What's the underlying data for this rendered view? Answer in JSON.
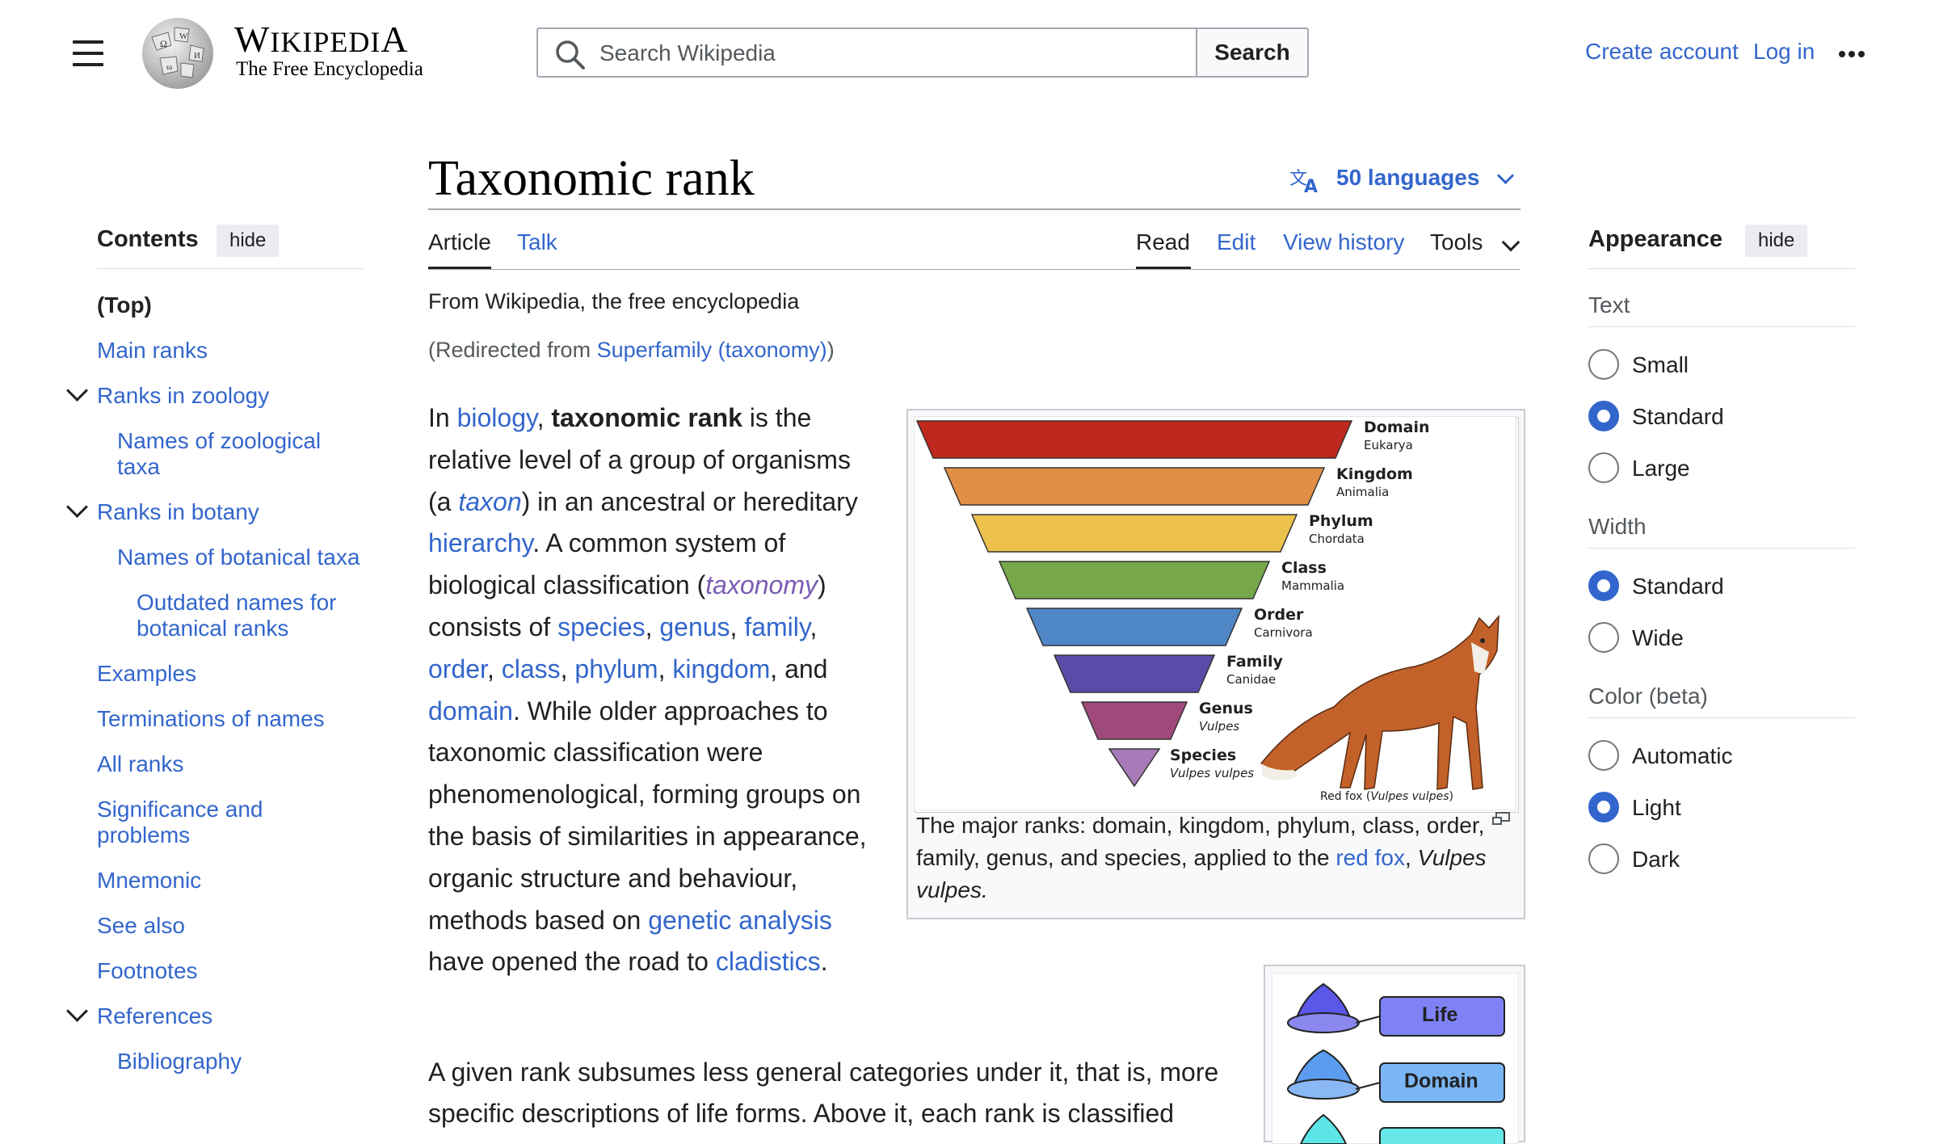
{
  "header": {
    "wordmark": "Wikipedia",
    "tagline": "The Free Encyclopedia",
    "search_placeholder": "Search Wikipedia",
    "search_button": "Search",
    "create_account": "Create account",
    "login": "Log in"
  },
  "toc": {
    "title": "Contents",
    "hide": "hide",
    "items": [
      {
        "label": "(Top)"
      },
      {
        "label": "Main ranks"
      },
      {
        "label": "Ranks in zoology"
      },
      {
        "label": "Names of zoological taxa"
      },
      {
        "label": "Ranks in botany"
      },
      {
        "label": "Names of botanical taxa"
      },
      {
        "label": "Outdated names for botanical ranks"
      },
      {
        "label": "Examples"
      },
      {
        "label": "Terminations of names"
      },
      {
        "label": "All ranks"
      },
      {
        "label": "Significance and problems"
      },
      {
        "label": "Mnemonic"
      },
      {
        "label": "See also"
      },
      {
        "label": "Footnotes"
      },
      {
        "label": "References"
      },
      {
        "label": "Bibliography"
      }
    ]
  },
  "article": {
    "title": "Taxonomic rank",
    "languages": "50 languages",
    "tabs": {
      "article": "Article",
      "talk": "Talk",
      "read": "Read",
      "edit": "Edit",
      "history": "View history",
      "tools": "Tools"
    },
    "from": "From Wikipedia, the free encyclopedia",
    "redirect_prefix": "(Redirected from ",
    "redirect_link": "Superfamily (taxonomy)",
    "redirect_suffix": ")",
    "p1": {
      "t1": "In ",
      "biology": "biology",
      "t2": ", ",
      "bold": "taxonomic rank",
      "t3": " is the relative level of a group of organisms (a ",
      "taxon": "taxon",
      "t4": ") in an ancestral or hereditary ",
      "hierarchy": "hierarchy",
      "t5": ". A common system of biological classification (",
      "taxonomy": "taxonomy",
      "t6": ") consists of ",
      "species": "species",
      "genus": "genus",
      "family": "family",
      "order": "order",
      "class": "class",
      "phylum": "phylum",
      "kingdom": "kingdom",
      "and": ", and ",
      "domain": "domain",
      "t7": ". While older approaches to taxonomic classification were phenomenological, forming groups on the basis of similarities in appearance, organic structure and behaviour, methods based on ",
      "genetic": "genetic analysis",
      "t8": " have opened the road to ",
      "cladistics": "cladistics",
      "t9": "."
    },
    "p2": "A given rank subsumes less general categories under it, that is, more specific descriptions of life forms. Above it, each rank is classified"
  },
  "figure1": {
    "ranks": [
      {
        "rank": "Domain",
        "example": "Eukarya",
        "color": "#c0271d"
      },
      {
        "rank": "Kingdom",
        "example": "Animalia",
        "color": "#e08f45"
      },
      {
        "rank": "Phylum",
        "example": "Chordata",
        "color": "#ecc24d"
      },
      {
        "rank": "Class",
        "example": "Mammalia",
        "color": "#76a84a"
      },
      {
        "rank": "Order",
        "example": "Carnivora",
        "color": "#4f86c6"
      },
      {
        "rank": "Family",
        "example": "Canidae",
        "color": "#5b4aa8"
      },
      {
        "rank": "Genus",
        "example": "Vulpes",
        "color": "#a04a7c"
      },
      {
        "rank": "Species",
        "example": "Vulpes vulpes",
        "color": "#a87bb8"
      }
    ],
    "fox_label_prefix": "Red fox (",
    "fox_label_italic": "Vulpes vulpes",
    "fox_label_suffix": ")",
    "caption_text": "The major ranks: domain, kingdom, phylum, class, order, family, genus, and species, applied to the ",
    "caption_link": "red fox",
    "caption_end": ",",
    "caption_italic": "Vulpes vulpes."
  },
  "figure2": {
    "labels": [
      "Life",
      "Domain"
    ]
  },
  "appearance": {
    "title": "Appearance",
    "hide": "hide",
    "text_label": "Text",
    "text_options": [
      "Small",
      "Standard",
      "Large"
    ],
    "text_selected": "Standard",
    "width_label": "Width",
    "width_options": [
      "Standard",
      "Wide"
    ],
    "width_selected": "Standard",
    "color_label": "Color (beta)",
    "color_options": [
      "Automatic",
      "Light",
      "Dark"
    ],
    "color_selected": "Light"
  },
  "colors": {
    "link": "#3366cc",
    "visited": "#795cb2",
    "radio_on": "#3366cc"
  }
}
